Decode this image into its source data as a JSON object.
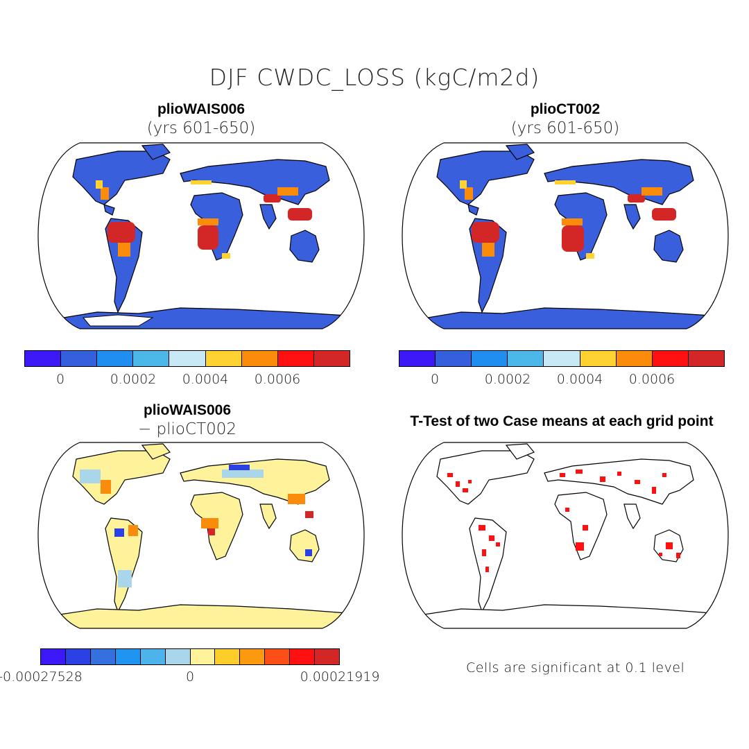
{
  "title": "DJF CWDC_LOSS (kgC/m2d)",
  "panels": [
    {
      "title": "plioWAIS006",
      "subtitle": "(yrs 601-650)"
    },
    {
      "title": "plioCT002",
      "subtitle": "(yrs 601-650)"
    },
    {
      "title": "plioWAIS006",
      "subtitle": "− plioCT002"
    },
    {
      "title": "T-Test of two Case means at each grid point",
      "subtitle": ""
    }
  ],
  "colorbar_top": {
    "colors": [
      "#3b18f5",
      "#3560dd",
      "#1f8ef0",
      "#4cb8ea",
      "#c8e8f6",
      "#fdd231",
      "#fb8c0b",
      "#ff1010",
      "#d32727"
    ],
    "labels": [
      "0",
      "0.0002",
      "0.0004",
      "0.0006"
    ]
  },
  "colorbar_diff": {
    "colors": [
      "#3b18f5",
      "#2b41e4",
      "#3570df",
      "#1f93f0",
      "#4cb4ea",
      "#aad6ec",
      "#fef39a",
      "#fdcd2a",
      "#fb9a0e",
      "#fa4e16",
      "#ff1010",
      "#d32727"
    ],
    "labels": [
      "-0.00027528",
      "0",
      "0.00021919"
    ]
  },
  "significance_note": "Cells are significant at 0.1 level"
}
